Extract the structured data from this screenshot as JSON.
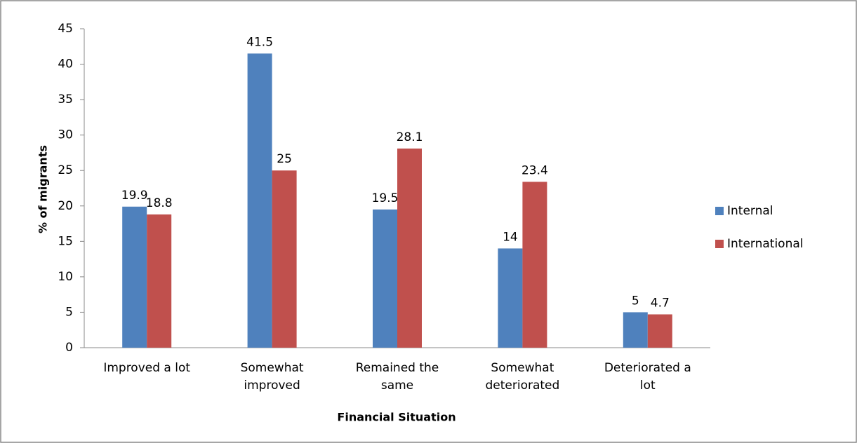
{
  "chart_data": {
    "type": "bar",
    "x_label": "Financial Situation",
    "y_label": "% of migrants",
    "categories": [
      "Improved a lot",
      "Somewhat improved",
      "Remained the same",
      "Somewhat deteriorated",
      "Deteriorated a lot"
    ],
    "series": [
      {
        "name": "Internal",
        "color": "#4f81bd",
        "values": [
          19.9,
          41.5,
          19.5,
          14,
          5
        ]
      },
      {
        "name": "International",
        "color": "#c0504d",
        "values": [
          18.8,
          25,
          28.1,
          23.4,
          4.7
        ]
      }
    ],
    "ylim": [
      0,
      45
    ],
    "yticks": [
      0,
      5,
      10,
      15,
      20,
      25,
      30,
      35,
      40,
      45
    ],
    "grid": false,
    "legend": "right"
  }
}
